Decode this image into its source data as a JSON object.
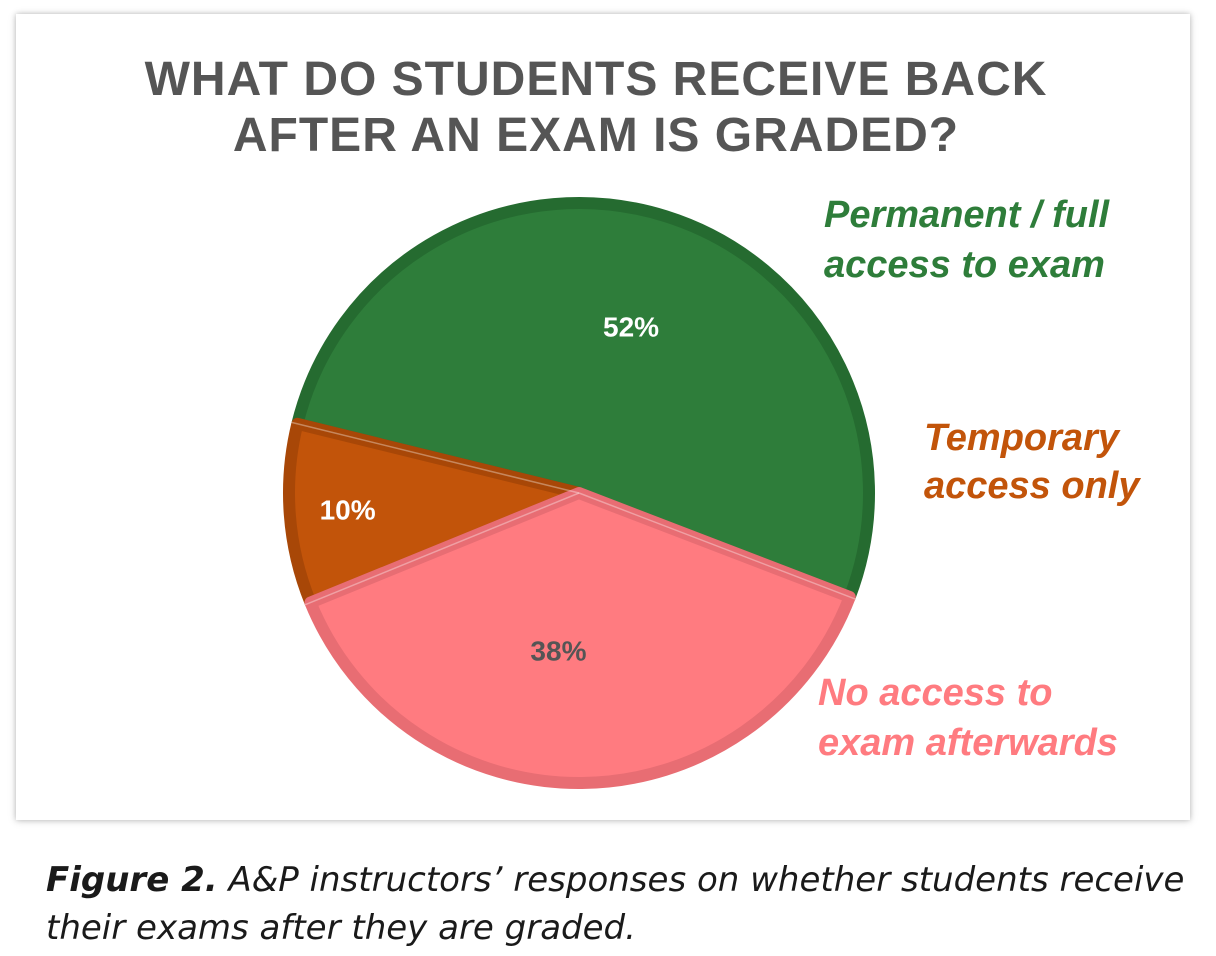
{
  "chart_data": {
    "type": "pie",
    "title": "WHAT DO STUDENTS RECEIVE BACK AFTER AN EXAM IS GRADED?",
    "title_lines": [
      "WHAT DO STUDENTS RECEIVE BACK",
      "AFTER AN EXAM IS GRADED?"
    ],
    "slices": [
      {
        "name": "Permanent / full access to exam",
        "label_lines": [
          "Permanent / full",
          "access to exam"
        ],
        "value": 52,
        "display": "52%",
        "color": "#2e7d3a",
        "edge_color": "#256b30",
        "label_color": "#2e7d3a",
        "value_text_color": "#ffffff"
      },
      {
        "name": "Temporary access only",
        "label_lines": [
          "Temporary",
          "access only"
        ],
        "value": 10,
        "display": "10%",
        "color": "#c2540a",
        "edge_color": "#a84707",
        "label_color": "#c2540a",
        "value_text_color": "#ffffff"
      },
      {
        "name": "No access to exam afterwards",
        "label_lines": [
          "No access to",
          "exam afterwards"
        ],
        "value": 38,
        "display": "38%",
        "color": "#ff7b80",
        "edge_color": "#e86d73",
        "label_color": "#ff7b80",
        "value_text_color": "#555555"
      }
    ],
    "start_angle_deg": -21,
    "direction": "counterclockwise"
  },
  "caption": {
    "label": "Figure 2.",
    "text": " A&P instructors’ responses on whether students receive their exams after they are graded."
  }
}
